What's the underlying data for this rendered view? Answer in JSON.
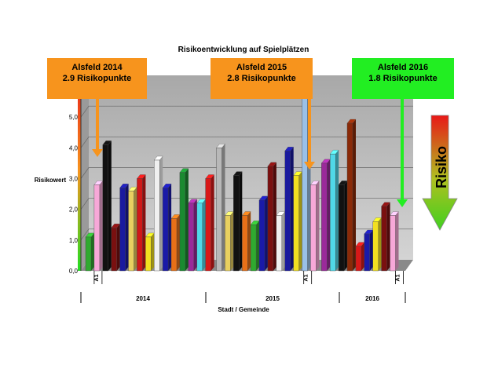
{
  "chart_data": {
    "type": "bar",
    "title": "Risikoentwicklung auf Spielplätzen",
    "xlabel": "Stadt / Gemeinde",
    "ylabel": "Risikowert",
    "ylim": [
      0,
      6
    ],
    "yticks": [
      "0,0",
      "1,0",
      "2,0",
      "3,0",
      "4,0",
      "5,0"
    ],
    "grid": true,
    "groups": [
      {
        "label": "2014",
        "marker": "A1",
        "values": [
          1.1,
          2.8,
          4.1,
          1.4,
          2.7,
          2.6,
          3.0,
          1.1,
          3.6,
          2.7,
          1.7,
          3.2,
          2.2,
          2.2,
          3.0
        ],
        "colors": [
          "#2faa2f",
          "#f7a8d8",
          "#111111",
          "#7a1010",
          "#1a1a9e",
          "#e8d060",
          "#d01818",
          "#f2e020",
          "#f0f0f0",
          "#1a1aa8",
          "#e87018",
          "#1a8a30",
          "#9a2a9a",
          "#50d8e8",
          "#d81818"
        ]
      },
      {
        "label": "2015",
        "marker": "A1",
        "values": [
          4.0,
          1.8,
          3.1,
          1.8,
          1.5,
          2.3,
          3.4,
          1.8,
          3.9,
          3.1,
          5.6,
          2.8
        ],
        "colors": [
          "#b8b8b8",
          "#e8d060",
          "#111111",
          "#e87018",
          "#2faa2f",
          "#1a1aa8",
          "#7a1010",
          "#f0f0f0",
          "#1a1a9e",
          "#f2e020",
          "#9ac0e8",
          "#f7a8d8"
        ]
      },
      {
        "label": "2016",
        "marker": "A1",
        "values": [
          3.5,
          3.8,
          2.8,
          4.8,
          0.8,
          1.2,
          1.6,
          2.1,
          1.8
        ],
        "colors": [
          "#9a2a9a",
          "#50d8e8",
          "#111111",
          "#8a2a08",
          "#d81818",
          "#1a1aa8",
          "#f2e020",
          "#7a1010",
          "#f7a8d8"
        ]
      }
    ],
    "annotations": [
      {
        "line1": "Alsfeld 2014",
        "line2": "2.9 Risikopunkte",
        "color": "#f7941d"
      },
      {
        "line1": "Alsfeld 2015",
        "line2": "2.8 Risikopunkte",
        "color": "#f7941d"
      },
      {
        "line1": "Alsfeld 2016",
        "line2": "1.8 Risikopunkte",
        "color": "#22ee22"
      }
    ],
    "risk_scale_label": "Risiko"
  }
}
